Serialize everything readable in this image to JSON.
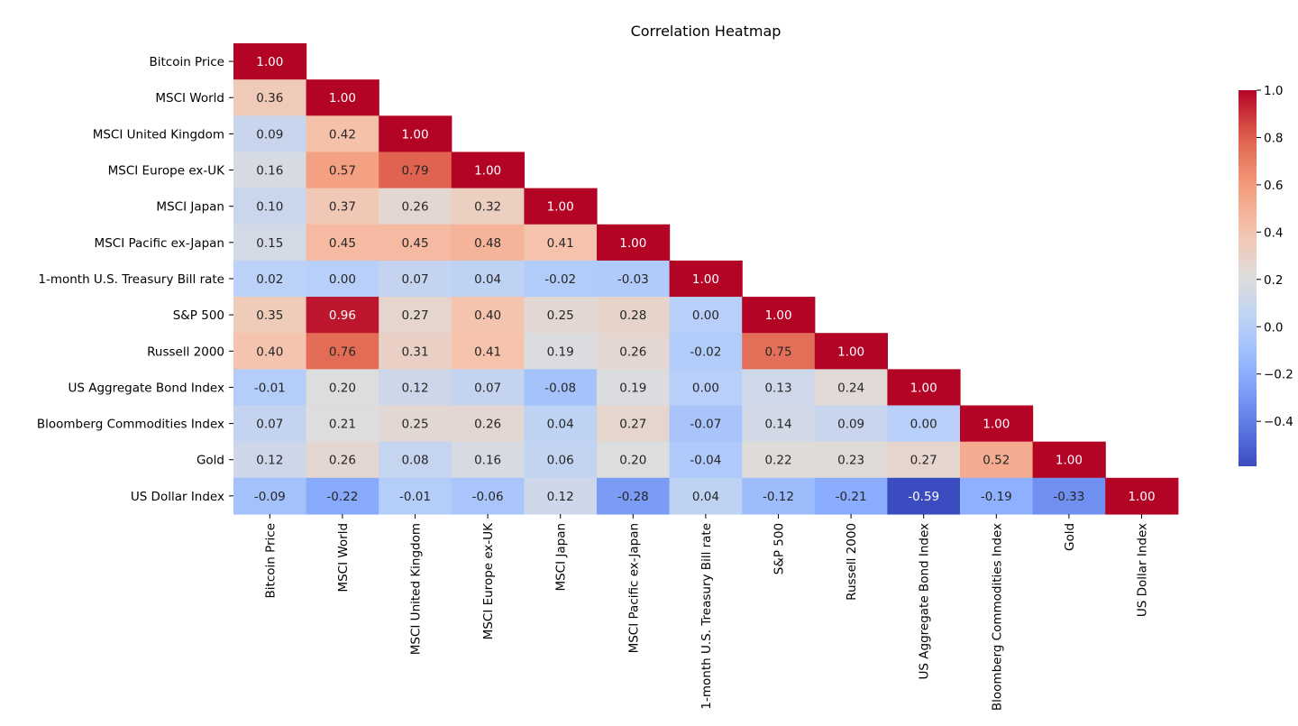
{
  "chart_data": {
    "type": "heatmap",
    "title": "Correlation Heatmap",
    "mask": "upper-triangle",
    "colormap": "coolwarm",
    "labels": [
      "Bitcoin Price",
      "MSCI World",
      "MSCI United Kingdom",
      "MSCI Europe ex-UK",
      "MSCI Japan",
      "MSCI Pacific ex-Japan",
      "1-month U.S. Treasury Bill rate",
      "S&P 500",
      "Russell 2000",
      "US Aggregate Bond Index",
      "Bloomberg Commodities Index",
      "Gold",
      "US Dollar Index"
    ],
    "matrix": [
      [
        1.0
      ],
      [
        0.36,
        1.0
      ],
      [
        0.09,
        0.42,
        1.0
      ],
      [
        0.16,
        0.57,
        0.79,
        1.0
      ],
      [
        0.1,
        0.37,
        0.26,
        0.32,
        1.0
      ],
      [
        0.15,
        0.45,
        0.45,
        0.48,
        0.41,
        1.0
      ],
      [
        0.02,
        -0.0,
        0.07,
        0.04,
        -0.02,
        -0.03,
        1.0
      ],
      [
        0.35,
        0.96,
        0.27,
        0.4,
        0.25,
        0.28,
        -0.0,
        1.0
      ],
      [
        0.4,
        0.76,
        0.31,
        0.41,
        0.19,
        0.26,
        -0.02,
        0.75,
        1.0
      ],
      [
        -0.01,
        0.2,
        0.12,
        0.07,
        -0.08,
        0.19,
        0.0,
        0.13,
        0.24,
        1.0
      ],
      [
        0.07,
        0.21,
        0.25,
        0.26,
        0.04,
        0.27,
        -0.07,
        0.14,
        0.09,
        -0.0,
        1.0
      ],
      [
        0.12,
        0.26,
        0.08,
        0.16,
        0.06,
        0.2,
        -0.04,
        0.22,
        0.23,
        0.27,
        0.52,
        1.0
      ],
      [
        -0.09,
        -0.22,
        -0.01,
        -0.06,
        0.12,
        -0.28,
        0.04,
        -0.12,
        -0.21,
        -0.59,
        -0.19,
        -0.33,
        1.0
      ]
    ],
    "colorbar": {
      "vmin": -0.59,
      "vmax": 1.0,
      "ticks": [
        "1.0",
        "0.8",
        "0.6",
        "0.4",
        "0.2",
        "0.0",
        "−0.2",
        "−0.4"
      ],
      "tick_values": [
        1.0,
        0.8,
        0.6,
        0.4,
        0.2,
        0.0,
        -0.2,
        -0.4
      ]
    }
  }
}
